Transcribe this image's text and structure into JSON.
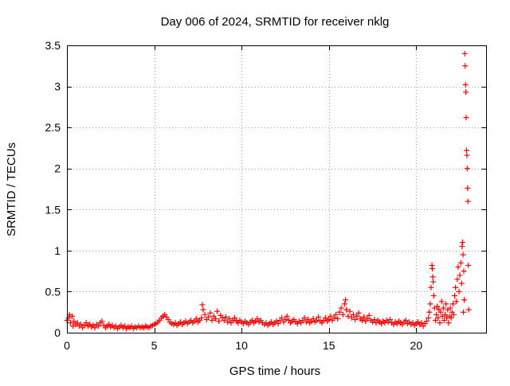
{
  "chart_data": {
    "type": "scatter",
    "title": "Day 006 of 2024, SRMTID for receiver nklg",
    "xlabel": "GPS time / hours",
    "ylabel": "SRMTID / TECUs",
    "xlim": [
      0,
      24
    ],
    "ylim": [
      0,
      3.5
    ],
    "x_ticks": [
      0,
      5,
      10,
      15,
      20
    ],
    "x_tick_labels": [
      "0",
      "5",
      "10",
      "15",
      "20"
    ],
    "y_ticks": [
      0,
      0.5,
      1,
      1.5,
      2,
      2.5,
      3,
      3.5
    ],
    "y_tick_labels": [
      "0",
      "0.5",
      "1",
      "1.5",
      "2",
      "2.5",
      "3",
      "3.5"
    ],
    "grid": true,
    "marker": "+",
    "series": [
      {
        "name": "SRMTID",
        "color": "#ff0000",
        "points": [
          [
            0.0,
            0.15
          ],
          [
            0.1,
            0.18
          ],
          [
            0.15,
            0.22
          ],
          [
            0.2,
            0.12
          ],
          [
            0.3,
            0.2
          ],
          [
            0.35,
            0.08
          ],
          [
            0.4,
            0.14
          ],
          [
            0.5,
            0.1
          ],
          [
            0.6,
            0.12
          ],
          [
            0.7,
            0.08
          ],
          [
            0.8,
            0.1
          ],
          [
            0.9,
            0.06
          ],
          [
            1.0,
            0.09
          ],
          [
            1.1,
            0.12
          ],
          [
            1.2,
            0.08
          ],
          [
            1.3,
            0.1
          ],
          [
            1.4,
            0.07
          ],
          [
            1.5,
            0.09
          ],
          [
            1.6,
            0.06
          ],
          [
            1.7,
            0.1
          ],
          [
            1.8,
            0.08
          ],
          [
            1.9,
            0.12
          ],
          [
            2.0,
            0.14
          ],
          [
            2.1,
            0.09
          ],
          [
            2.2,
            0.06
          ],
          [
            2.3,
            0.08
          ],
          [
            2.4,
            0.1
          ],
          [
            2.5,
            0.07
          ],
          [
            2.6,
            0.09
          ],
          [
            2.7,
            0.06
          ],
          [
            2.8,
            0.08
          ],
          [
            2.9,
            0.05
          ],
          [
            3.0,
            0.07
          ],
          [
            3.1,
            0.09
          ],
          [
            3.2,
            0.06
          ],
          [
            3.3,
            0.08
          ],
          [
            3.4,
            0.05
          ],
          [
            3.5,
            0.07
          ],
          [
            3.6,
            0.06
          ],
          [
            3.7,
            0.08
          ],
          [
            3.8,
            0.05
          ],
          [
            3.9,
            0.07
          ],
          [
            4.0,
            0.06
          ],
          [
            4.1,
            0.08
          ],
          [
            4.2,
            0.06
          ],
          [
            4.3,
            0.07
          ],
          [
            4.4,
            0.06
          ],
          [
            4.5,
            0.08
          ],
          [
            4.6,
            0.07
          ],
          [
            4.7,
            0.06
          ],
          [
            4.8,
            0.08
          ],
          [
            4.9,
            0.09
          ],
          [
            5.0,
            0.1
          ],
          [
            5.1,
            0.11
          ],
          [
            5.2,
            0.13
          ],
          [
            5.3,
            0.15
          ],
          [
            5.4,
            0.18
          ],
          [
            5.5,
            0.2
          ],
          [
            5.6,
            0.22
          ],
          [
            5.7,
            0.19
          ],
          [
            5.8,
            0.16
          ],
          [
            5.9,
            0.13
          ],
          [
            6.0,
            0.11
          ],
          [
            6.1,
            0.1
          ],
          [
            6.2,
            0.12
          ],
          [
            6.3,
            0.09
          ],
          [
            6.4,
            0.11
          ],
          [
            6.5,
            0.13
          ],
          [
            6.6,
            0.1
          ],
          [
            6.7,
            0.12
          ],
          [
            6.8,
            0.14
          ],
          [
            6.9,
            0.11
          ],
          [
            7.0,
            0.13
          ],
          [
            7.1,
            0.15
          ],
          [
            7.2,
            0.12
          ],
          [
            7.3,
            0.14
          ],
          [
            7.4,
            0.17
          ],
          [
            7.5,
            0.13
          ],
          [
            7.6,
            0.15
          ],
          [
            7.7,
            0.18
          ],
          [
            7.75,
            0.34
          ],
          [
            7.8,
            0.28
          ],
          [
            7.9,
            0.22
          ],
          [
            8.0,
            0.16
          ],
          [
            8.1,
            0.19
          ],
          [
            8.2,
            0.24
          ],
          [
            8.3,
            0.15
          ],
          [
            8.4,
            0.2
          ],
          [
            8.5,
            0.17
          ],
          [
            8.6,
            0.26
          ],
          [
            8.7,
            0.14
          ],
          [
            8.8,
            0.21
          ],
          [
            8.9,
            0.18
          ],
          [
            9.0,
            0.15
          ],
          [
            9.1,
            0.19
          ],
          [
            9.2,
            0.13
          ],
          [
            9.3,
            0.17
          ],
          [
            9.4,
            0.12
          ],
          [
            9.5,
            0.15
          ],
          [
            9.6,
            0.18
          ],
          [
            9.7,
            0.14
          ],
          [
            9.8,
            0.12
          ],
          [
            9.9,
            0.15
          ],
          [
            10.0,
            0.13
          ],
          [
            10.1,
            0.11
          ],
          [
            10.2,
            0.14
          ],
          [
            10.3,
            0.12
          ],
          [
            10.4,
            0.1
          ],
          [
            10.5,
            0.13
          ],
          [
            10.6,
            0.15
          ],
          [
            10.7,
            0.12
          ],
          [
            10.8,
            0.14
          ],
          [
            10.9,
            0.17
          ],
          [
            11.0,
            0.13
          ],
          [
            11.1,
            0.15
          ],
          [
            11.2,
            0.12
          ],
          [
            11.3,
            0.1
          ],
          [
            11.4,
            0.12
          ],
          [
            11.5,
            0.09
          ],
          [
            11.6,
            0.11
          ],
          [
            11.7,
            0.13
          ],
          [
            11.8,
            0.1
          ],
          [
            11.9,
            0.12
          ],
          [
            12.0,
            0.14
          ],
          [
            12.1,
            0.11
          ],
          [
            12.2,
            0.15
          ],
          [
            12.3,
            0.18
          ],
          [
            12.4,
            0.13
          ],
          [
            12.5,
            0.16
          ],
          [
            12.6,
            0.2
          ],
          [
            12.7,
            0.15
          ],
          [
            12.8,
            0.12
          ],
          [
            12.9,
            0.14
          ],
          [
            13.0,
            0.16
          ],
          [
            13.1,
            0.13
          ],
          [
            13.2,
            0.11
          ],
          [
            13.3,
            0.14
          ],
          [
            13.4,
            0.12
          ],
          [
            13.5,
            0.15
          ],
          [
            13.6,
            0.18
          ],
          [
            13.7,
            0.13
          ],
          [
            13.8,
            0.16
          ],
          [
            13.9,
            0.12
          ],
          [
            14.0,
            0.14
          ],
          [
            14.1,
            0.17
          ],
          [
            14.2,
            0.13
          ],
          [
            14.3,
            0.15
          ],
          [
            14.4,
            0.19
          ],
          [
            14.5,
            0.14
          ],
          [
            14.6,
            0.12
          ],
          [
            14.7,
            0.15
          ],
          [
            14.8,
            0.18
          ],
          [
            14.9,
            0.14
          ],
          [
            15.0,
            0.16
          ],
          [
            15.1,
            0.2
          ],
          [
            15.2,
            0.15
          ],
          [
            15.3,
            0.18
          ],
          [
            15.4,
            0.22
          ],
          [
            15.5,
            0.17
          ],
          [
            15.6,
            0.25
          ],
          [
            15.7,
            0.3
          ],
          [
            15.8,
            0.22
          ],
          [
            15.9,
            0.35
          ],
          [
            15.95,
            0.4
          ],
          [
            16.0,
            0.28
          ],
          [
            16.1,
            0.2
          ],
          [
            16.2,
            0.26
          ],
          [
            16.3,
            0.18
          ],
          [
            16.4,
            0.22
          ],
          [
            16.5,
            0.16
          ],
          [
            16.6,
            0.2
          ],
          [
            16.7,
            0.24
          ],
          [
            16.8,
            0.17
          ],
          [
            16.9,
            0.15
          ],
          [
            17.0,
            0.19
          ],
          [
            17.1,
            0.14
          ],
          [
            17.2,
            0.17
          ],
          [
            17.3,
            0.21
          ],
          [
            17.4,
            0.15
          ],
          [
            17.5,
            0.13
          ],
          [
            17.6,
            0.16
          ],
          [
            17.7,
            0.12
          ],
          [
            17.8,
            0.15
          ],
          [
            17.9,
            0.13
          ],
          [
            18.0,
            0.11
          ],
          [
            18.1,
            0.14
          ],
          [
            18.2,
            0.12
          ],
          [
            18.3,
            0.15
          ],
          [
            18.4,
            0.13
          ],
          [
            18.5,
            0.16
          ],
          [
            18.6,
            0.12
          ],
          [
            18.7,
            0.1
          ],
          [
            18.8,
            0.13
          ],
          [
            18.9,
            0.11
          ],
          [
            19.0,
            0.14
          ],
          [
            19.1,
            0.12
          ],
          [
            19.2,
            0.1
          ],
          [
            19.3,
            0.13
          ],
          [
            19.4,
            0.15
          ],
          [
            19.5,
            0.11
          ],
          [
            19.6,
            0.13
          ],
          [
            19.7,
            0.1
          ],
          [
            19.8,
            0.12
          ],
          [
            19.9,
            0.09
          ],
          [
            20.0,
            0.11
          ],
          [
            20.1,
            0.13
          ],
          [
            20.2,
            0.1
          ],
          [
            20.3,
            0.12
          ],
          [
            20.4,
            0.08
          ],
          [
            20.5,
            0.11
          ],
          [
            20.6,
            0.14
          ],
          [
            20.7,
            0.18
          ],
          [
            20.75,
            0.25
          ],
          [
            20.8,
            0.35
          ],
          [
            20.85,
            0.55
          ],
          [
            20.9,
            0.82
          ],
          [
            20.92,
            0.78
          ],
          [
            20.95,
            0.68
          ],
          [
            20.97,
            0.62
          ],
          [
            21.0,
            0.45
          ],
          [
            21.05,
            0.3
          ],
          [
            21.1,
            0.15
          ],
          [
            21.15,
            0.22
          ],
          [
            21.2,
            0.32
          ],
          [
            21.25,
            0.18
          ],
          [
            21.3,
            0.28
          ],
          [
            21.35,
            0.12
          ],
          [
            21.4,
            0.25
          ],
          [
            21.45,
            0.38
          ],
          [
            21.5,
            0.2
          ],
          [
            21.55,
            0.3
          ],
          [
            21.6,
            0.15
          ],
          [
            21.65,
            0.22
          ],
          [
            21.7,
            0.35
          ],
          [
            21.75,
            0.18
          ],
          [
            21.8,
            0.28
          ],
          [
            21.85,
            0.12
          ],
          [
            21.9,
            0.2
          ],
          [
            21.95,
            0.3
          ],
          [
            22.0,
            0.18
          ],
          [
            22.05,
            0.25
          ],
          [
            22.1,
            0.35
          ],
          [
            22.15,
            0.22
          ],
          [
            22.2,
            0.45
          ],
          [
            22.25,
            0.55
          ],
          [
            22.3,
            0.38
          ],
          [
            22.35,
            0.65
          ],
          [
            22.4,
            0.8
          ],
          [
            22.45,
            0.5
          ],
          [
            22.5,
            0.7
          ],
          [
            22.55,
            0.85
          ],
          [
            22.6,
            0.6
          ],
          [
            22.62,
            1.05
          ],
          [
            22.65,
            1.1
          ],
          [
            22.68,
            0.95
          ],
          [
            22.7,
            0.25
          ],
          [
            22.72,
            0.75
          ],
          [
            22.75,
            0.4
          ],
          [
            22.78,
            3.4
          ],
          [
            22.8,
            3.25
          ],
          [
            22.82,
            3.02
          ],
          [
            22.84,
            2.93
          ],
          [
            22.86,
            2.62
          ],
          [
            22.88,
            2.22
          ],
          [
            22.9,
            2.16
          ],
          [
            22.92,
            2.0
          ],
          [
            22.94,
            1.76
          ],
          [
            22.96,
            1.6
          ],
          [
            22.98,
            0.82
          ],
          [
            23.0,
            0.28
          ]
        ]
      }
    ]
  }
}
